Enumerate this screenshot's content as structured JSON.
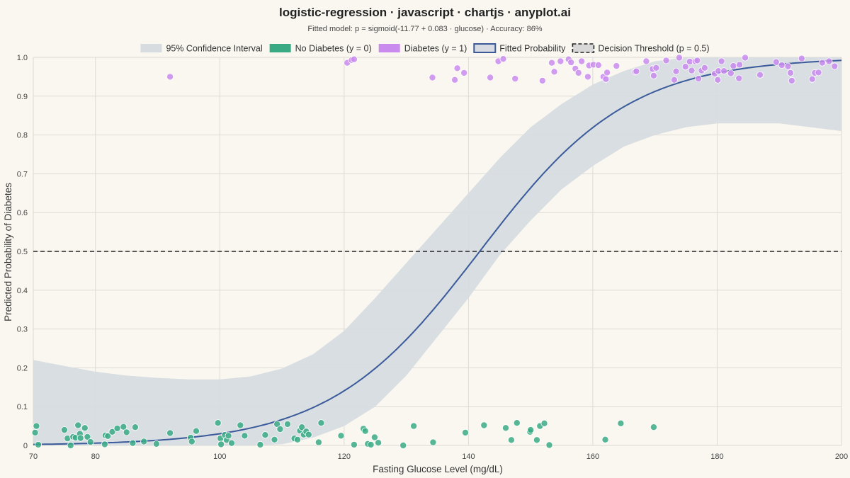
{
  "chart_data": {
    "type": "scatter",
    "title": "logistic-regression · javascript · chartjs · anyplot.ai",
    "subtitle": "Fitted model: p = sigmoid(-11.77 + 0.083 · glucose) · Accuracy: 86%",
    "xlabel": "Fasting Glucose Level (mg/dL)",
    "ylabel": "Predicted Probability of Diabetes",
    "xlim": [
      70,
      200
    ],
    "ylim": [
      0,
      1
    ],
    "x_ticks": [
      70,
      80,
      100,
      120,
      140,
      160,
      180,
      200
    ],
    "y_ticks": [
      0,
      0.1,
      0.2,
      0.3,
      0.4,
      0.5,
      0.6,
      0.7,
      0.8,
      0.9,
      1.0
    ],
    "y_tick_labels": [
      "0",
      "0.1",
      "0.2",
      "0.3",
      "0.4",
      "0.5",
      "0.6",
      "0.7",
      "0.8",
      "0.9",
      "1.0"
    ],
    "grid": true,
    "legend_position": "top",
    "model": {
      "intercept": -11.77,
      "slope": 0.083
    },
    "threshold": 0.5,
    "colors": {
      "ci_fill": "#D6DCE0",
      "no_diabetes": "#3AAA85",
      "diabetes": "#C98BEE",
      "fitted": "#3A5A9A",
      "threshold": "#222222"
    },
    "legend": [
      {
        "key": "ci",
        "label": "95% Confidence Interval"
      },
      {
        "key": "no_diabetes",
        "label": "No Diabetes (y = 0)"
      },
      {
        "key": "diabetes",
        "label": "Diabetes (y = 1)"
      },
      {
        "key": "fitted",
        "label": "Fitted Probability"
      },
      {
        "key": "threshold",
        "label": "Decision Threshold (p = 0.5)"
      }
    ],
    "confidence_interval": {
      "x": [
        70,
        75,
        80,
        85,
        90,
        95,
        100,
        105,
        110,
        115,
        120,
        125,
        130,
        135,
        140,
        145,
        150,
        155,
        160,
        165,
        170,
        175,
        180,
        185,
        190,
        195,
        200
      ],
      "lower": [
        0.0,
        0.0,
        0.0,
        0.0,
        0.0,
        0.0,
        0.0,
        0.0,
        0.003,
        0.02,
        0.05,
        0.1,
        0.18,
        0.28,
        0.38,
        0.49,
        0.58,
        0.66,
        0.72,
        0.77,
        0.8,
        0.82,
        0.83,
        0.83,
        0.83,
        0.82,
        0.81
      ],
      "upper": [
        0.22,
        0.205,
        0.19,
        0.18,
        0.174,
        0.17,
        0.17,
        0.178,
        0.198,
        0.235,
        0.295,
        0.38,
        0.47,
        0.56,
        0.65,
        0.74,
        0.82,
        0.88,
        0.93,
        0.965,
        0.99,
        1.0,
        1.0,
        1.0,
        1.0,
        1.0,
        1.0
      ]
    },
    "series": [
      {
        "name": "No Diabetes (y = 0)",
        "points": [
          {
            "x": 70.5,
            "y": 0.05
          },
          {
            "x": 70.3,
            "y": 0.033
          },
          {
            "x": 70.8,
            "y": 0.002
          },
          {
            "x": 75.0,
            "y": 0.04
          },
          {
            "x": 75.5,
            "y": 0.018
          },
          {
            "x": 76.0,
            "y": 0.0
          },
          {
            "x": 76.4,
            "y": 0.022
          },
          {
            "x": 76.8,
            "y": 0.02
          },
          {
            "x": 77.2,
            "y": 0.052
          },
          {
            "x": 77.5,
            "y": 0.03
          },
          {
            "x": 77.6,
            "y": 0.019
          },
          {
            "x": 78.3,
            "y": 0.045
          },
          {
            "x": 78.7,
            "y": 0.022
          },
          {
            "x": 79.2,
            "y": 0.009
          },
          {
            "x": 81.5,
            "y": 0.003
          },
          {
            "x": 81.6,
            "y": 0.026
          },
          {
            "x": 82.0,
            "y": 0.024
          },
          {
            "x": 82.7,
            "y": 0.035
          },
          {
            "x": 83.5,
            "y": 0.044
          },
          {
            "x": 84.5,
            "y": 0.048
          },
          {
            "x": 85.0,
            "y": 0.034
          },
          {
            "x": 86.0,
            "y": 0.006
          },
          {
            "x": 86.4,
            "y": 0.047
          },
          {
            "x": 87.8,
            "y": 0.01
          },
          {
            "x": 89.8,
            "y": 0.004
          },
          {
            "x": 92.0,
            "y": 0.032
          },
          {
            "x": 95.3,
            "y": 0.02
          },
          {
            "x": 95.5,
            "y": 0.01
          },
          {
            "x": 96.2,
            "y": 0.037
          },
          {
            "x": 99.7,
            "y": 0.058
          },
          {
            "x": 100.1,
            "y": 0.018
          },
          {
            "x": 100.2,
            "y": 0.003
          },
          {
            "x": 100.8,
            "y": 0.027
          },
          {
            "x": 101.1,
            "y": 0.014
          },
          {
            "x": 101.4,
            "y": 0.025
          },
          {
            "x": 101.9,
            "y": 0.006
          },
          {
            "x": 103.3,
            "y": 0.052
          },
          {
            "x": 104.0,
            "y": 0.025
          },
          {
            "x": 106.5,
            "y": 0.002
          },
          {
            "x": 107.3,
            "y": 0.027
          },
          {
            "x": 108.8,
            "y": 0.015
          },
          {
            "x": 109.2,
            "y": 0.055
          },
          {
            "x": 109.7,
            "y": 0.042
          },
          {
            "x": 110.9,
            "y": 0.055
          },
          {
            "x": 112.0,
            "y": 0.018
          },
          {
            "x": 112.5,
            "y": 0.015
          },
          {
            "x": 112.9,
            "y": 0.038
          },
          {
            "x": 113.2,
            "y": 0.047
          },
          {
            "x": 113.5,
            "y": 0.028
          },
          {
            "x": 113.9,
            "y": 0.036
          },
          {
            "x": 114.3,
            "y": 0.028
          },
          {
            "x": 115.9,
            "y": 0.008
          },
          {
            "x": 116.3,
            "y": 0.058
          },
          {
            "x": 119.5,
            "y": 0.025
          },
          {
            "x": 121.6,
            "y": 0.002
          },
          {
            "x": 123.1,
            "y": 0.043
          },
          {
            "x": 123.4,
            "y": 0.037
          },
          {
            "x": 123.8,
            "y": 0.004
          },
          {
            "x": 124.3,
            "y": 0.002
          },
          {
            "x": 124.9,
            "y": 0.021
          },
          {
            "x": 125.5,
            "y": 0.007
          },
          {
            "x": 129.5,
            "y": 0.0
          },
          {
            "x": 131.2,
            "y": 0.05
          },
          {
            "x": 134.3,
            "y": 0.008
          },
          {
            "x": 139.5,
            "y": 0.033
          },
          {
            "x": 142.5,
            "y": 0.052
          },
          {
            "x": 146.0,
            "y": 0.045
          },
          {
            "x": 146.9,
            "y": 0.014
          },
          {
            "x": 147.8,
            "y": 0.058
          },
          {
            "x": 149.9,
            "y": 0.035
          },
          {
            "x": 150.0,
            "y": 0.04
          },
          {
            "x": 151.0,
            "y": 0.014
          },
          {
            "x": 151.5,
            "y": 0.05
          },
          {
            "x": 152.2,
            "y": 0.057
          },
          {
            "x": 153.0,
            "y": 0.001
          },
          {
            "x": 162.0,
            "y": 0.015
          },
          {
            "x": 164.5,
            "y": 0.057
          },
          {
            "x": 169.8,
            "y": 0.047
          }
        ]
      },
      {
        "name": "Diabetes (y = 1)",
        "points": [
          {
            "x": 92.0,
            "y": 0.95
          },
          {
            "x": 120.5,
            "y": 0.986
          },
          {
            "x": 121.2,
            "y": 0.993
          },
          {
            "x": 121.6,
            "y": 0.995
          },
          {
            "x": 134.2,
            "y": 0.948
          },
          {
            "x": 137.8,
            "y": 0.942
          },
          {
            "x": 138.2,
            "y": 0.972
          },
          {
            "x": 139.3,
            "y": 0.96
          },
          {
            "x": 140.4,
            "y": 1.04
          },
          {
            "x": 143.5,
            "y": 0.948
          },
          {
            "x": 144.8,
            "y": 0.99
          },
          {
            "x": 145.6,
            "y": 0.996
          },
          {
            "x": 147.5,
            "y": 0.945
          },
          {
            "x": 151.9,
            "y": 0.94
          },
          {
            "x": 153.4,
            "y": 0.986
          },
          {
            "x": 153.8,
            "y": 0.963
          },
          {
            "x": 154.8,
            "y": 0.99
          },
          {
            "x": 155.3,
            "y": 1.03
          },
          {
            "x": 156.1,
            "y": 0.995
          },
          {
            "x": 156.5,
            "y": 0.987
          },
          {
            "x": 157.2,
            "y": 0.971
          },
          {
            "x": 157.7,
            "y": 0.96
          },
          {
            "x": 158.2,
            "y": 0.99
          },
          {
            "x": 159.2,
            "y": 0.95
          },
          {
            "x": 159.4,
            "y": 0.979
          },
          {
            "x": 160.1,
            "y": 0.981
          },
          {
            "x": 160.9,
            "y": 0.98
          },
          {
            "x": 161.7,
            "y": 0.95
          },
          {
            "x": 162.1,
            "y": 0.944
          },
          {
            "x": 162.3,
            "y": 0.961
          },
          {
            "x": 163.8,
            "y": 0.978
          },
          {
            "x": 166.8,
            "y": 0.963
          },
          {
            "x": 167.0,
            "y": 0.964
          },
          {
            "x": 168.6,
            "y": 0.99
          },
          {
            "x": 169.6,
            "y": 0.97
          },
          {
            "x": 169.8,
            "y": 0.953
          },
          {
            "x": 170.2,
            "y": 0.973
          },
          {
            "x": 171.8,
            "y": 0.992
          },
          {
            "x": 173.1,
            "y": 0.942
          },
          {
            "x": 173.4,
            "y": 0.964
          },
          {
            "x": 173.9,
            "y": 0.999
          },
          {
            "x": 174.9,
            "y": 0.976
          },
          {
            "x": 175.6,
            "y": 0.989
          },
          {
            "x": 175.9,
            "y": 0.966
          },
          {
            "x": 176.5,
            "y": 0.99
          },
          {
            "x": 176.8,
            "y": 0.992
          },
          {
            "x": 177.0,
            "y": 0.945
          },
          {
            "x": 177.5,
            "y": 0.966
          },
          {
            "x": 178.0,
            "y": 0.973
          },
          {
            "x": 179.6,
            "y": 0.958
          },
          {
            "x": 180.1,
            "y": 0.942
          },
          {
            "x": 180.2,
            "y": 0.965
          },
          {
            "x": 180.7,
            "y": 0.99
          },
          {
            "x": 181.1,
            "y": 0.965
          },
          {
            "x": 182.2,
            "y": 0.959
          },
          {
            "x": 182.6,
            "y": 0.978
          },
          {
            "x": 183.5,
            "y": 0.946
          },
          {
            "x": 183.6,
            "y": 0.981
          },
          {
            "x": 184.5,
            "y": 0.999
          },
          {
            "x": 186.2,
            "y": 1.03
          },
          {
            "x": 186.9,
            "y": 0.955
          },
          {
            "x": 189.5,
            "y": 0.988
          },
          {
            "x": 190.4,
            "y": 0.98
          },
          {
            "x": 191.4,
            "y": 0.977
          },
          {
            "x": 191.8,
            "y": 0.96
          },
          {
            "x": 192.0,
            "y": 0.94
          },
          {
            "x": 193.6,
            "y": 0.997
          },
          {
            "x": 195.3,
            "y": 0.944
          },
          {
            "x": 195.7,
            "y": 0.96
          },
          {
            "x": 196.3,
            "y": 0.961
          },
          {
            "x": 196.9,
            "y": 0.986
          },
          {
            "x": 198.0,
            "y": 0.99
          },
          {
            "x": 198.9,
            "y": 0.977
          }
        ]
      }
    ]
  }
}
